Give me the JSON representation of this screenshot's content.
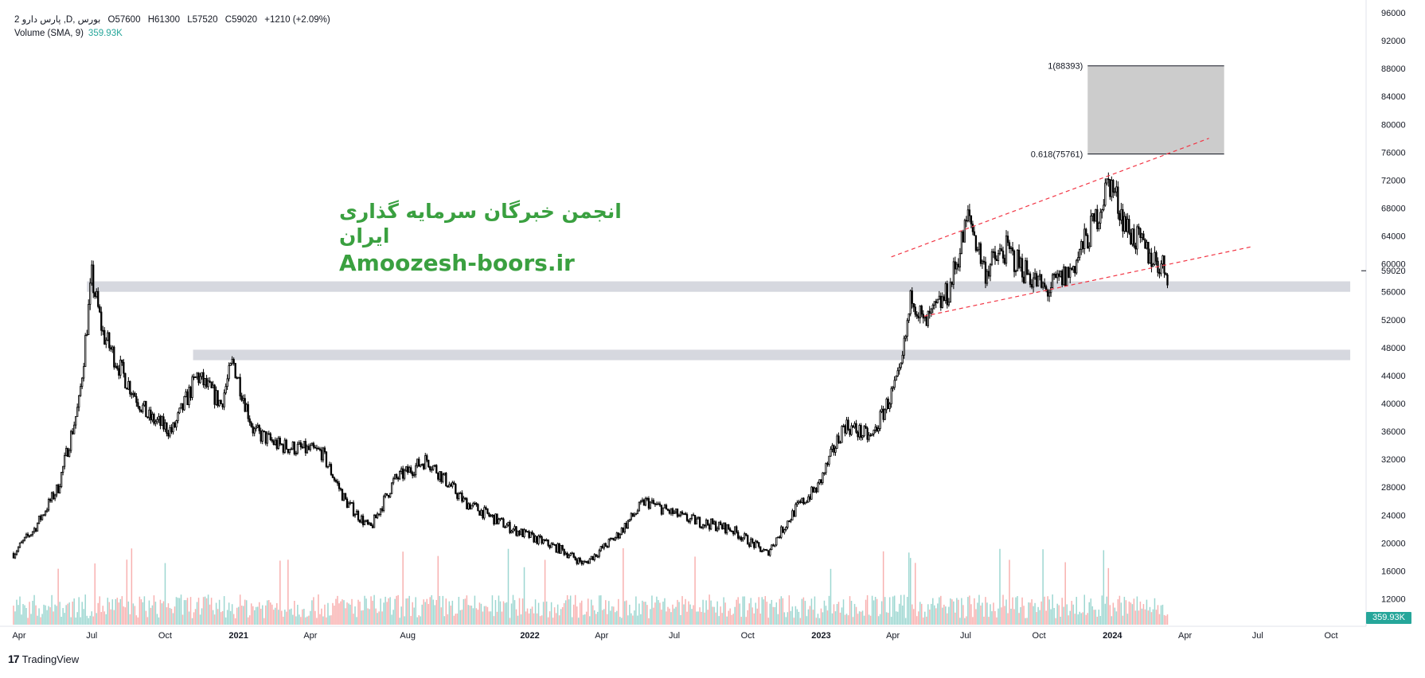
{
  "legend": {
    "symbol": "2 پارس دارو ,D, بورس",
    "open": "O57600",
    "high": "H61300",
    "low": "L57520",
    "close": "C59020",
    "change": "+1210 (+2.09%)",
    "volume_label": "Volume (SMA, 9)",
    "volume_value": "359.93K"
  },
  "watermark": {
    "persian": "انجمن خبرگان سرمایه گذاری ایران",
    "website": "Amoozesh-boors.ir"
  },
  "brand": {
    "name": "TradingView",
    "logo": "17"
  },
  "colors": {
    "candle": "#000000",
    "zone": "#d1d4dc",
    "target_box": "#cccccc",
    "trendline": "#f23645",
    "volume_up": "#26a69a",
    "volume_down": "#ef5350",
    "watermark": "#3aa040"
  },
  "chart_data": {
    "type": "candlestick",
    "title": "",
    "xlabel": "",
    "ylabel": "",
    "ylim": [
      10000,
      96000
    ],
    "y_ticks": [
      "96000",
      "92000",
      "88000",
      "84000",
      "80000",
      "76000",
      "72000",
      "68000",
      "64000",
      "60000",
      "56000",
      "52000",
      "48000",
      "44000",
      "40000",
      "36000",
      "32000",
      "28000",
      "24000",
      "20000",
      "16000",
      "12000"
    ],
    "x_ticks": [
      "Apr",
      "Jul",
      "Oct",
      "2021",
      "Apr",
      "Aug",
      "2022",
      "Apr",
      "Jul",
      "Oct",
      "2023",
      "Apr",
      "Jul",
      "Oct",
      "2024",
      "Apr",
      "Jul",
      "Oct"
    ],
    "x_bold": [
      "2021",
      "2022",
      "2023",
      "2024"
    ],
    "last_price_label": "59020",
    "last_volume_label": "359.93K",
    "price_path": [
      {
        "date": "2020-03-25",
        "close": 18500
      },
      {
        "date": "2020-04-20",
        "close": 22000
      },
      {
        "date": "2020-05-20",
        "close": 28000
      },
      {
        "date": "2020-06-15",
        "close": 40000
      },
      {
        "date": "2020-07-01",
        "close": 58000
      },
      {
        "date": "2020-07-15",
        "close": 50000
      },
      {
        "date": "2020-08-10",
        "close": 44000
      },
      {
        "date": "2020-09-10",
        "close": 38000
      },
      {
        "date": "2020-10-10",
        "close": 36000
      },
      {
        "date": "2020-11-10",
        "close": 44000
      },
      {
        "date": "2020-12-10",
        "close": 40000
      },
      {
        "date": "2020-12-25",
        "close": 46000
      },
      {
        "date": "2021-01-20",
        "close": 36000
      },
      {
        "date": "2021-02-20",
        "close": 34000
      },
      {
        "date": "2021-04-15",
        "close": 33000
      },
      {
        "date": "2021-05-15",
        "close": 26000
      },
      {
        "date": "2021-06-15",
        "close": 22000
      },
      {
        "date": "2021-07-15",
        "close": 29000
      },
      {
        "date": "2021-08-25",
        "close": 32000
      },
      {
        "date": "2021-10-10",
        "close": 26000
      },
      {
        "date": "2021-12-10",
        "close": 22000
      },
      {
        "date": "2022-02-10",
        "close": 19000
      },
      {
        "date": "2022-03-10",
        "close": 17000
      },
      {
        "date": "2022-04-20",
        "close": 21000
      },
      {
        "date": "2022-05-25",
        "close": 26000
      },
      {
        "date": "2022-07-15",
        "close": 23500
      },
      {
        "date": "2022-09-10",
        "close": 22000
      },
      {
        "date": "2022-10-25",
        "close": 18500
      },
      {
        "date": "2022-12-01",
        "close": 25000
      },
      {
        "date": "2022-12-28",
        "close": 28000
      },
      {
        "date": "2023-01-30",
        "close": 37000
      },
      {
        "date": "2023-03-05",
        "close": 35000
      },
      {
        "date": "2023-04-10",
        "close": 44000
      },
      {
        "date": "2023-04-25",
        "close": 56000
      },
      {
        "date": "2023-05-10",
        "close": 51000
      },
      {
        "date": "2023-06-10",
        "close": 56000
      },
      {
        "date": "2023-07-05",
        "close": 67000
      },
      {
        "date": "2023-07-25",
        "close": 59000
      },
      {
        "date": "2023-08-20",
        "close": 62000
      },
      {
        "date": "2023-10-10",
        "close": 56000
      },
      {
        "date": "2023-11-10",
        "close": 59000
      },
      {
        "date": "2023-12-10",
        "close": 66000
      },
      {
        "date": "2023-12-28",
        "close": 72000
      },
      {
        "date": "2024-01-20",
        "close": 65000
      },
      {
        "date": "2024-02-10",
        "close": 62000
      },
      {
        "date": "2024-03-10",
        "close": 59020
      }
    ],
    "zones": [
      {
        "name": "support-zone-upper",
        "from_date": "2020-06-25",
        "to_date": "2024-10-25",
        "low": 56000,
        "high": 57500
      },
      {
        "name": "support-zone-lower",
        "from_date": "2020-11-05",
        "to_date": "2024-10-25",
        "low": 46200,
        "high": 47700
      }
    ],
    "target_box": {
      "from_date": "2023-12-01",
      "to_date": "2024-05-20",
      "low": 75761,
      "high": 88393,
      "labels": [
        {
          "text": "1(88393)",
          "price": 88393
        },
        {
          "text": "0.618(75761)",
          "price": 75761
        }
      ]
    },
    "trendlines": [
      {
        "name": "channel-top",
        "from": {
          "date": "2023-03-30",
          "price": 61000
        },
        "to": {
          "date": "2024-05-01",
          "price": 78000
        }
      },
      {
        "name": "channel-bottom",
        "from": {
          "date": "2023-05-10",
          "price": 52500
        },
        "to": {
          "date": "2024-06-25",
          "price": 62500
        }
      }
    ]
  }
}
